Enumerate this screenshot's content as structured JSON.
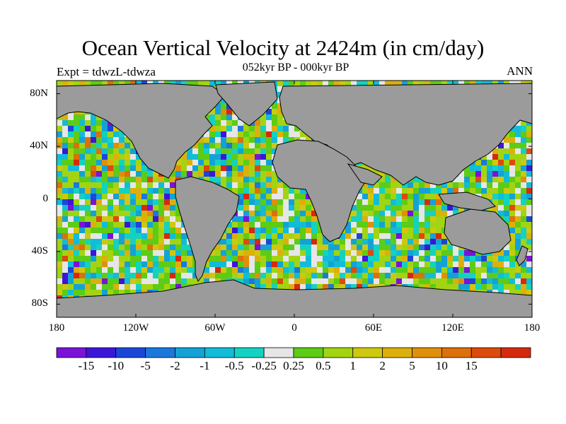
{
  "title": "Ocean Vertical Velocity at 2424m (in cm/day)",
  "experiment": "Expt = tdwzL-tdwza",
  "subtitle": "052kyr BP - 000kyr BP",
  "season": "ANN",
  "map": {
    "projection": "cylindrical-equidistant",
    "lon_range": [
      -180,
      180
    ],
    "lat_range": [
      -90,
      90
    ],
    "land_color": "#9b9b9b",
    "coastline_color": "#000000",
    "lat_ticks": [
      {
        "value": 80,
        "label": "80N"
      },
      {
        "value": 40,
        "label": "40N"
      },
      {
        "value": 0,
        "label": "0"
      },
      {
        "value": -40,
        "label": "40S"
      },
      {
        "value": -80,
        "label": "80S"
      }
    ],
    "lon_ticks": [
      {
        "value": -180,
        "label": "180"
      },
      {
        "value": -120,
        "label": "120W"
      },
      {
        "value": -60,
        "label": "60W"
      },
      {
        "value": 0,
        "label": "0"
      },
      {
        "value": 60,
        "label": "60E"
      },
      {
        "value": 120,
        "label": "120E"
      },
      {
        "value": 180,
        "label": "180"
      }
    ]
  },
  "colorbar": {
    "colors": [
      "#7a12d8",
      "#3c16d8",
      "#1c46d8",
      "#1a78dc",
      "#14a2d6",
      "#12bcd8",
      "#14d2c0",
      "#e6e6e6",
      "#5ccc16",
      "#a2d412",
      "#cec810",
      "#dcb00c",
      "#de900a",
      "#dc700a",
      "#dc4a0c",
      "#d62a0e"
    ],
    "labels": [
      "-15",
      "-10",
      "-5",
      "-2",
      "-1",
      "-0.5",
      "-0.25",
      "0.25",
      "0.5",
      "1",
      "2",
      "5",
      "10",
      "15"
    ]
  }
}
